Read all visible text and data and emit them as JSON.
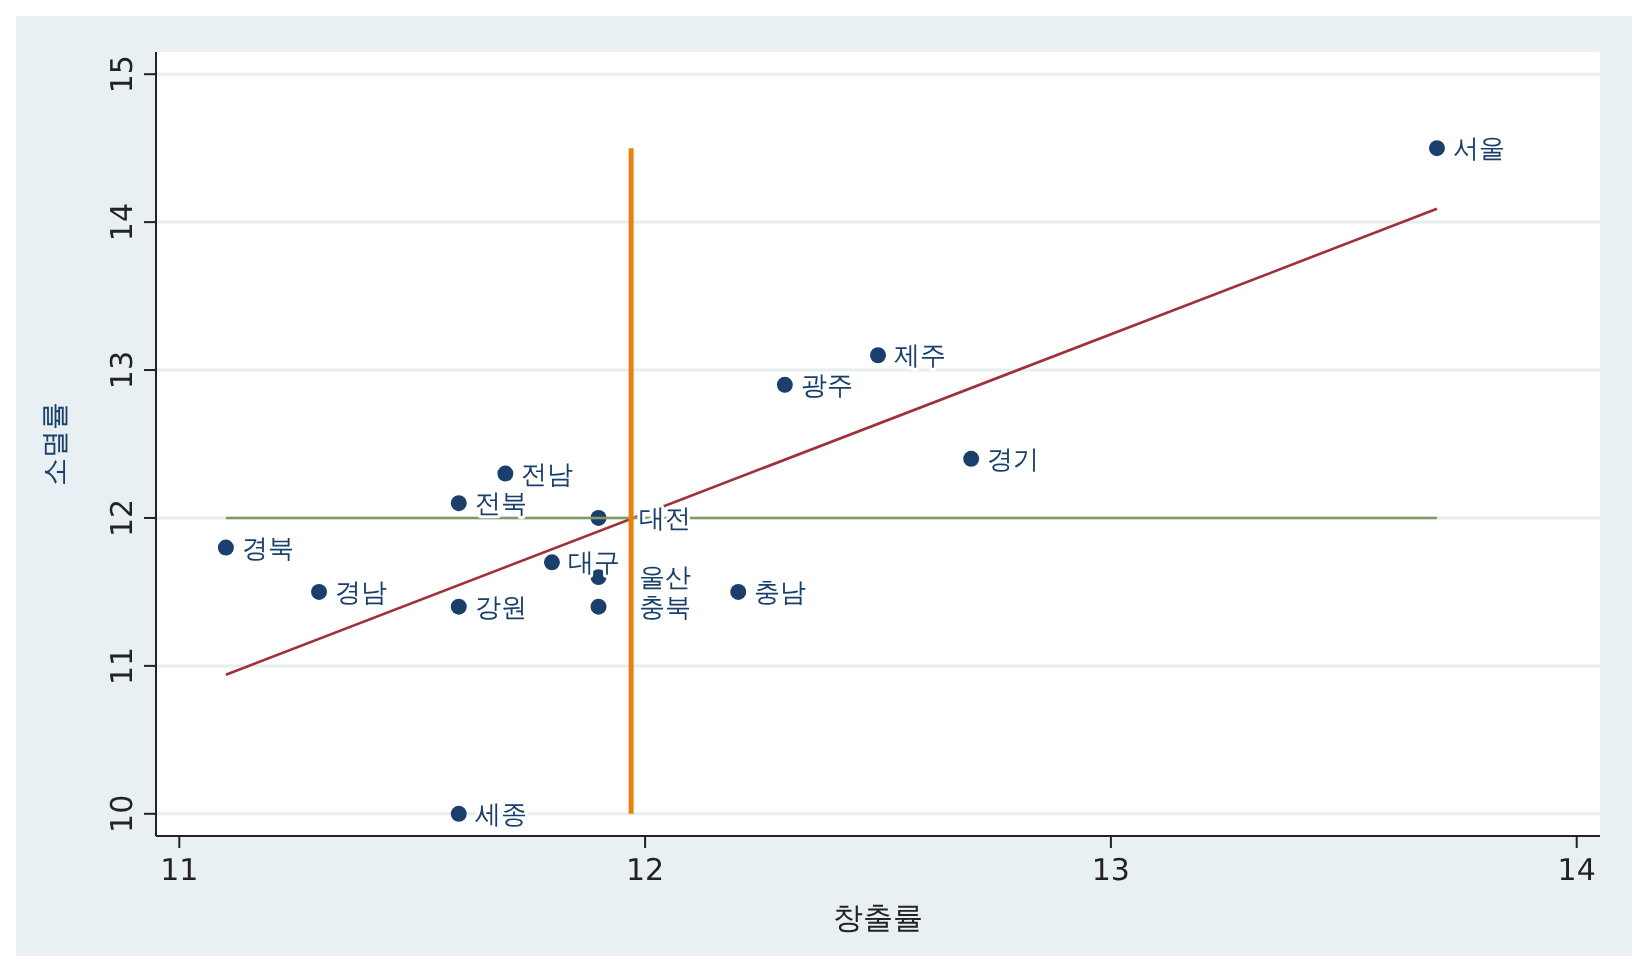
{
  "chart_data": {
    "type": "scatter",
    "xlabel": "창출률",
    "ylabel": "소멸률",
    "xlim": [
      10.95,
      14.05
    ],
    "ylim": [
      9.85,
      15.15
    ],
    "xticks": [
      11,
      12,
      13,
      14
    ],
    "yticks": [
      10,
      11,
      12,
      13,
      14,
      15
    ],
    "grid": "y",
    "series": [
      {
        "marker": "circle",
        "color": "#1a3f6b",
        "x": [
          13.7,
          12.5,
          12.3,
          12.7,
          11.7,
          11.6,
          11.9,
          11.1,
          11.8,
          11.9,
          11.3,
          12.2,
          11.6,
          11.9,
          11.6
        ],
        "values": [
          14.5,
          13.1,
          12.9,
          12.4,
          12.3,
          12.1,
          12.0,
          11.8,
          11.7,
          11.6,
          11.5,
          11.5,
          11.4,
          11.4,
          10.0
        ]
      },
      {
        "type": "line",
        "marker": "none",
        "color": "#a0303a",
        "x": [
          11.1,
          13.7
        ],
        "values": [
          10.94,
          14.09
        ]
      },
      {
        "type": "line",
        "marker": "none",
        "color": "#7f9a65",
        "x": [
          11.1,
          13.7
        ],
        "values": [
          12,
          12
        ]
      },
      {
        "type": "line",
        "marker": "none",
        "color": "#e8820c",
        "x": [
          11.97,
          11.97
        ],
        "values": [
          10,
          14.5
        ]
      }
    ],
    "annotations": [
      {
        "text": "서울",
        "x": 13.7,
        "y": 14.5
      },
      {
        "text": "제주",
        "x": 12.5,
        "y": 13.1
      },
      {
        "text": "광주",
        "x": 12.3,
        "y": 12.9
      },
      {
        "text": "경기",
        "x": 12.7,
        "y": 12.4
      },
      {
        "text": "전남",
        "x": 11.7,
        "y": 12.3
      },
      {
        "text": "전북",
        "x": 11.6,
        "y": 12.1
      },
      {
        "text": "대전",
        "x": 11.9,
        "y": 12.0
      },
      {
        "text": "경북",
        "x": 11.1,
        "y": 11.8
      },
      {
        "text": "대구",
        "x": 11.8,
        "y": 11.7
      },
      {
        "text": "울산",
        "x": 11.9,
        "y": 11.6
      },
      {
        "text": "경남",
        "x": 11.3,
        "y": 11.5
      },
      {
        "text": "충남",
        "x": 12.2,
        "y": 11.5
      },
      {
        "text": "강원",
        "x": 11.6,
        "y": 11.4
      },
      {
        "text": "충북",
        "x": 11.9,
        "y": 11.4
      },
      {
        "text": "세종",
        "x": 11.6,
        "y": 10.0
      }
    ]
  }
}
